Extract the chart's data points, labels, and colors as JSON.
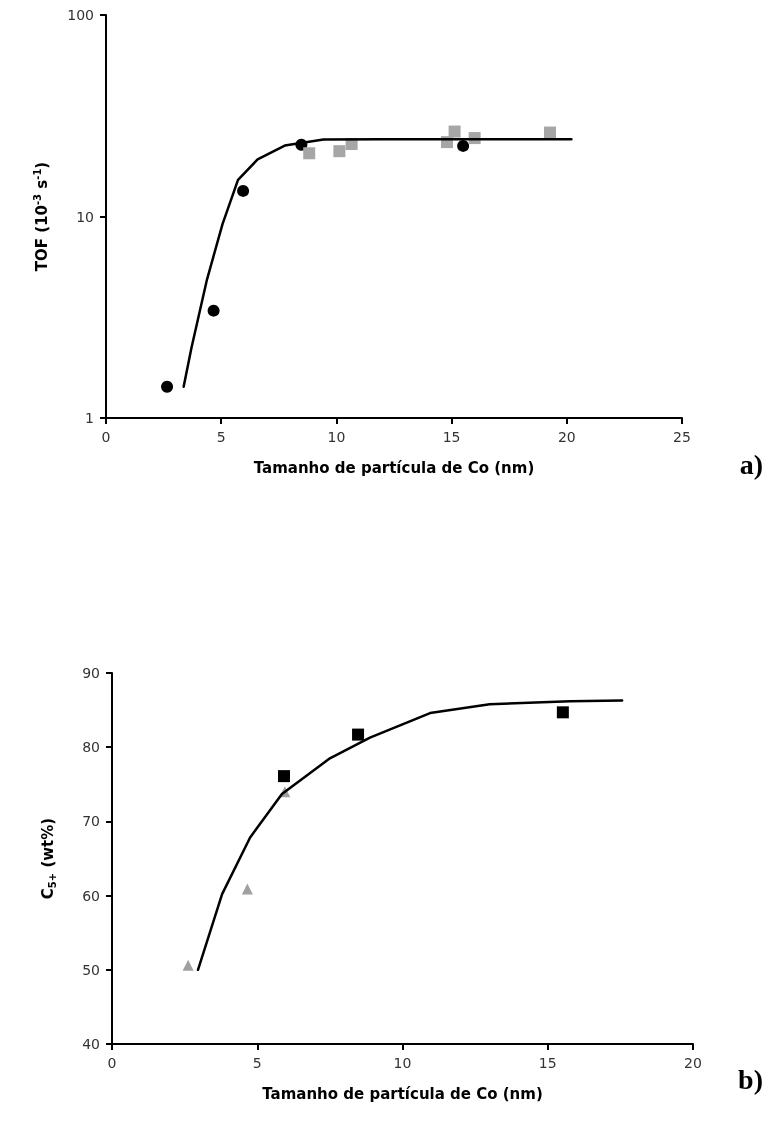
{
  "chart_data": [
    {
      "type": "scatter",
      "xlabel": "Tamanho de partícula de Co (nm)",
      "ylabel": "TOF (10$^{-3}$ s$^{-1}$)",
      "annotations": [
        "a)"
      ],
      "log": "y",
      "grid": false,
      "xlim": [
        0,
        25
      ],
      "xticks": [
        0,
        5,
        10,
        15,
        20,
        25
      ],
      "ylim": [
        1,
        100
      ],
      "yticks": [
        1,
        10,
        100
      ],
      "series": [
        {
          "marker": "circle",
          "color": "#000000",
          "x": [
            2.65,
            4.67,
            5.95,
            8.48,
            15.5
          ],
          "values": [
            1.43,
            3.41,
            13.4,
            22.7,
            22.4
          ]
        },
        {
          "marker": "square",
          "color": "#a6a6a6",
          "x": [
            8.82,
            10.13,
            10.66,
            14.8,
            15.13,
            16.0,
            19.27
          ],
          "values": [
            20.6,
            21.1,
            22.9,
            23.4,
            26.4,
            24.5,
            26.1
          ]
        },
        {
          "type": "line",
          "marker": "none",
          "color": "#000000",
          "line_style": "solid",
          "x": [
            3.37,
            3.71,
            4.38,
            5.06,
            5.73,
            6.58,
            7.76,
            9.44,
            12.0,
            20.2
          ],
          "values": [
            1.43,
            2.23,
            4.85,
            9.2,
            15.2,
            19.2,
            22.5,
            24.1,
            24.2,
            24.2
          ]
        }
      ]
    },
    {
      "type": "scatter",
      "xlabel": "Tamanho de partícula de Co (nm)",
      "ylabel": "C$_{5+}$ (wt%)",
      "annotations": [
        "b)"
      ],
      "grid": false,
      "xlim": [
        0,
        20
      ],
      "xticks": [
        0,
        5,
        10,
        15,
        20
      ],
      "ylim": [
        40,
        90
      ],
      "yticks": [
        40,
        50,
        60,
        70,
        80,
        90
      ],
      "series": [
        {
          "marker": "square",
          "color": "#000000",
          "x": [
            5.92,
            8.47,
            15.52
          ],
          "values": [
            76.1,
            81.7,
            84.7
          ]
        },
        {
          "marker": "triangle",
          "color": "#a0a0a0",
          "x": [
            2.62,
            4.66,
            5.95
          ],
          "values": [
            50.6,
            60.9,
            74.0
          ]
        },
        {
          "type": "line",
          "marker": "none",
          "color": "#000000",
          "line_style": "solid",
          "x": [
            2.96,
            3.79,
            4.75,
            5.85,
            7.5,
            8.88,
            10.95,
            13.0,
            15.77,
            17.56
          ],
          "values": [
            50,
            60.2,
            67.8,
            73.7,
            78.5,
            81.3,
            84.6,
            85.8,
            86.2,
            86.3
          ]
        }
      ]
    }
  ]
}
